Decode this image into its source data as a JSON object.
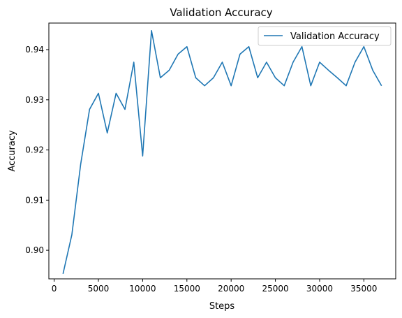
{
  "chart_data": {
    "type": "line",
    "title": "Validation Accuracy",
    "xlabel": "Steps",
    "ylabel": "Accuracy",
    "xlim": [
      -600,
      38600
    ],
    "ylim": [
      0.8943,
      0.9453
    ],
    "xticks": [
      0,
      5000,
      10000,
      15000,
      20000,
      25000,
      30000,
      35000
    ],
    "yticks": [
      0.9,
      0.91,
      0.92,
      0.93,
      0.94
    ],
    "ytick_labels": [
      "0.90",
      "0.91",
      "0.92",
      "0.93",
      "0.94"
    ],
    "grid": false,
    "legend_placement": "top-right",
    "series": [
      {
        "name": "Validation Accuracy",
        "color": "#1f77b4",
        "x": [
          1000,
          2000,
          3000,
          4000,
          5000,
          6000,
          7000,
          8000,
          9000,
          10000,
          11000,
          12000,
          13000,
          14000,
          15000,
          16000,
          17000,
          18000,
          19000,
          20000,
          21000,
          22000,
          23000,
          24000,
          25000,
          26000,
          27000,
          28000,
          29000,
          30000,
          31000,
          32000,
          33000,
          34000,
          35000,
          36000,
          37000
        ],
        "y": [
          0.8953,
          0.9031,
          0.9172,
          0.9281,
          0.9313,
          0.9234,
          0.9313,
          0.9281,
          0.9375,
          0.9188,
          0.9438,
          0.9344,
          0.9359,
          0.9391,
          0.9406,
          0.9344,
          0.9328,
          0.9344,
          0.9375,
          0.9328,
          0.9391,
          0.9406,
          0.9344,
          0.9375,
          0.9344,
          0.9328,
          0.9375,
          0.9406,
          0.9328,
          0.9375,
          0.9359,
          0.9344,
          0.9328,
          0.9375,
          0.9406,
          0.9359,
          0.9328
        ]
      }
    ]
  }
}
